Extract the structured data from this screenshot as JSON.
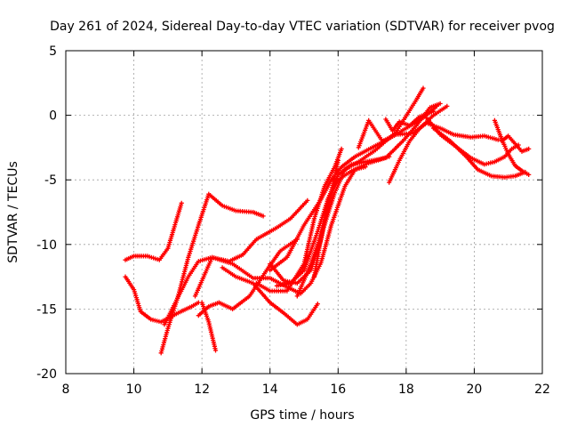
{
  "chart_data": {
    "type": "scatter",
    "title": "Day 261 of 2024, Sidereal Day-to-day VTEC variation (SDTVAR) for receiver pvog",
    "xlabel": "GPS time / hours",
    "ylabel": "SDTVAR / TECUs",
    "xlim": [
      8,
      22
    ],
    "ylim": [
      -20,
      5
    ],
    "xticks": [
      8,
      10,
      12,
      14,
      16,
      18,
      20,
      22
    ],
    "yticks": [
      -20,
      -15,
      -10,
      -5,
      0,
      5
    ],
    "xtick_labels": [
      "8",
      "10",
      "12",
      "14",
      "16",
      "18",
      "20",
      "22"
    ],
    "ytick_labels": [
      "-20",
      "-15",
      "-10",
      "-5",
      "0",
      "5"
    ],
    "grid": true,
    "legend": "none",
    "marker": "+",
    "color": "#ff0000",
    "series": [
      {
        "name": "track-1",
        "x": [
          9.75,
          10.0,
          10.4,
          10.75,
          11.0,
          11.4
        ],
        "y": [
          -11.2,
          -10.9,
          -10.9,
          -11.2,
          -10.3,
          -6.8
        ]
      },
      {
        "name": "track-2",
        "x": [
          9.75,
          10.0,
          10.2,
          10.5,
          10.8,
          11.3,
          11.7,
          11.9
        ],
        "y": [
          -12.5,
          -13.5,
          -15.2,
          -15.8,
          -16.0,
          -15.3,
          -14.8,
          -14.5
        ]
      },
      {
        "name": "track-3",
        "x": [
          10.8,
          11.0,
          11.3,
          11.6,
          11.9,
          12.2,
          12.6,
          13.0,
          13.5,
          13.8
        ],
        "y": [
          -18.4,
          -16.5,
          -14.0,
          -11.0,
          -8.5,
          -6.1,
          -7.0,
          -7.4,
          -7.5,
          -7.8
        ]
      },
      {
        "name": "track-4",
        "x": [
          10.9,
          11.2,
          11.6,
          11.9,
          12.3,
          12.8,
          13.2,
          13.6,
          14.2,
          14.6,
          15.1
        ],
        "y": [
          -16.2,
          -14.6,
          -12.5,
          -11.3,
          -11.0,
          -11.3,
          -10.8,
          -9.6,
          -8.7,
          -8.0,
          -6.6
        ]
      },
      {
        "name": "track-5",
        "x": [
          12.0,
          12.2,
          12.4
        ],
        "y": [
          -14.5,
          -16.0,
          -18.2
        ]
      },
      {
        "name": "track-6",
        "x": [
          11.9,
          12.2,
          12.5,
          12.9,
          13.4,
          13.9,
          14.3,
          14.8
        ],
        "y": [
          -15.5,
          -14.8,
          -14.5,
          -15.0,
          -14.0,
          -12.0,
          -10.5,
          -9.6
        ]
      },
      {
        "name": "track-7",
        "x": [
          12.6,
          13.0,
          13.5,
          14.0,
          14.4,
          14.8,
          15.1,
          15.4
        ],
        "y": [
          -11.8,
          -12.5,
          -13.0,
          -14.5,
          -15.3,
          -16.2,
          -15.8,
          -14.6
        ]
      },
      {
        "name": "track-8",
        "x": [
          11.8,
          12.3,
          12.9,
          13.5,
          14.0,
          14.5,
          14.9,
          15.2,
          15.5,
          15.8,
          16.2,
          16.5,
          16.8
        ],
        "y": [
          -14.0,
          -11.0,
          -11.5,
          -12.6,
          -12.6,
          -13.3,
          -13.8,
          -13.0,
          -11.4,
          -8.5,
          -5.5,
          -4.2,
          -4.0
        ]
      },
      {
        "name": "track-9",
        "x": [
          14.0,
          14.4,
          14.8,
          15.2,
          15.5,
          15.7,
          16.0
        ],
        "y": [
          -11.5,
          -12.8,
          -13.0,
          -12.0,
          -9.6,
          -7.2,
          -3.5
        ]
      },
      {
        "name": "track-10",
        "x": [
          13.6,
          14.0,
          14.5,
          15.0,
          15.3,
          15.6,
          15.9,
          16.1
        ],
        "y": [
          -13.0,
          -13.6,
          -13.6,
          -11.5,
          -8.0,
          -5.5,
          -4.0,
          -2.6
        ]
      },
      {
        "name": "track-11",
        "x": [
          14.2,
          14.6,
          15.0,
          15.4,
          15.7,
          16.0,
          16.4,
          16.8,
          17.2,
          17.5
        ],
        "y": [
          -13.2,
          -13.0,
          -12.0,
          -9.0,
          -6.5,
          -4.6,
          -3.8,
          -3.6,
          -3.4,
          -3.2
        ]
      },
      {
        "name": "track-12",
        "x": [
          14.0,
          14.5,
          15.0,
          15.5,
          15.8,
          16.1,
          16.5,
          17.0,
          17.5,
          18.0,
          18.5,
          18.9
        ],
        "y": [
          -12.0,
          -11.0,
          -8.5,
          -6.5,
          -5.0,
          -4.0,
          -3.2,
          -2.5,
          -1.8,
          -1.0,
          -0.2,
          0.7
        ]
      },
      {
        "name": "track-13",
        "x": [
          14.8,
          15.2,
          15.6,
          15.9,
          16.2,
          16.6,
          17.1,
          17.7,
          18.3,
          18.5
        ],
        "y": [
          -14.0,
          -11.5,
          -8.5,
          -6.0,
          -4.2,
          -3.6,
          -2.7,
          -1.3,
          1.2,
          2.1
        ]
      },
      {
        "name": "track-14",
        "x": [
          15.3,
          15.5,
          15.7,
          16.0,
          16.4,
          16.9,
          17.4,
          17.9,
          18.3,
          18.7,
          19.0
        ],
        "y": [
          -12.5,
          -9.5,
          -6.5,
          -5.0,
          -4.3,
          -3.7,
          -3.3,
          -2.0,
          -0.8,
          0.6,
          0.9
        ]
      },
      {
        "name": "track-15",
        "x": [
          16.6,
          16.9,
          17.3,
          17.7,
          18.2,
          18.6,
          19.0,
          19.4,
          19.9,
          20.3,
          20.7
        ],
        "y": [
          -2.5,
          -0.4,
          -2.0,
          -1.5,
          -1.4,
          -0.6,
          -1.0,
          -1.5,
          -1.7,
          -1.6,
          -1.9
        ]
      },
      {
        "name": "track-16",
        "x": [
          17.4,
          17.6,
          17.8,
          18.1,
          18.4,
          18.8
        ],
        "y": [
          -0.3,
          -1.2,
          -0.5,
          -0.8,
          -0.1,
          0.3
        ]
      },
      {
        "name": "track-17",
        "x": [
          17.5,
          17.8,
          18.1,
          18.4,
          18.8,
          19.2
        ],
        "y": [
          -5.2,
          -3.5,
          -2.0,
          -1.0,
          0.0,
          0.7
        ]
      },
      {
        "name": "track-18",
        "x": [
          18.6,
          19.0,
          19.5,
          19.9,
          20.3,
          20.6,
          20.9,
          21.1,
          21.3
        ],
        "y": [
          -0.2,
          -1.5,
          -2.5,
          -3.3,
          -3.8,
          -3.6,
          -3.2,
          -2.6,
          -2.3
        ]
      },
      {
        "name": "track-19",
        "x": [
          18.8,
          19.3,
          19.8,
          20.1,
          20.5,
          20.9,
          21.2,
          21.5
        ],
        "y": [
          -1.0,
          -2.0,
          -3.3,
          -4.2,
          -4.7,
          -4.8,
          -4.7,
          -4.4
        ]
      },
      {
        "name": "track-20",
        "x": [
          20.6,
          20.8,
          21.0,
          21.2,
          21.4,
          21.6
        ],
        "y": [
          -0.4,
          -1.8,
          -3.0,
          -3.9,
          -4.3,
          -4.6
        ]
      },
      {
        "name": "track-21",
        "x": [
          20.8,
          21.0,
          21.2,
          21.4,
          21.6
        ],
        "y": [
          -2.0,
          -1.6,
          -2.2,
          -2.8,
          -2.6
        ]
      }
    ]
  }
}
